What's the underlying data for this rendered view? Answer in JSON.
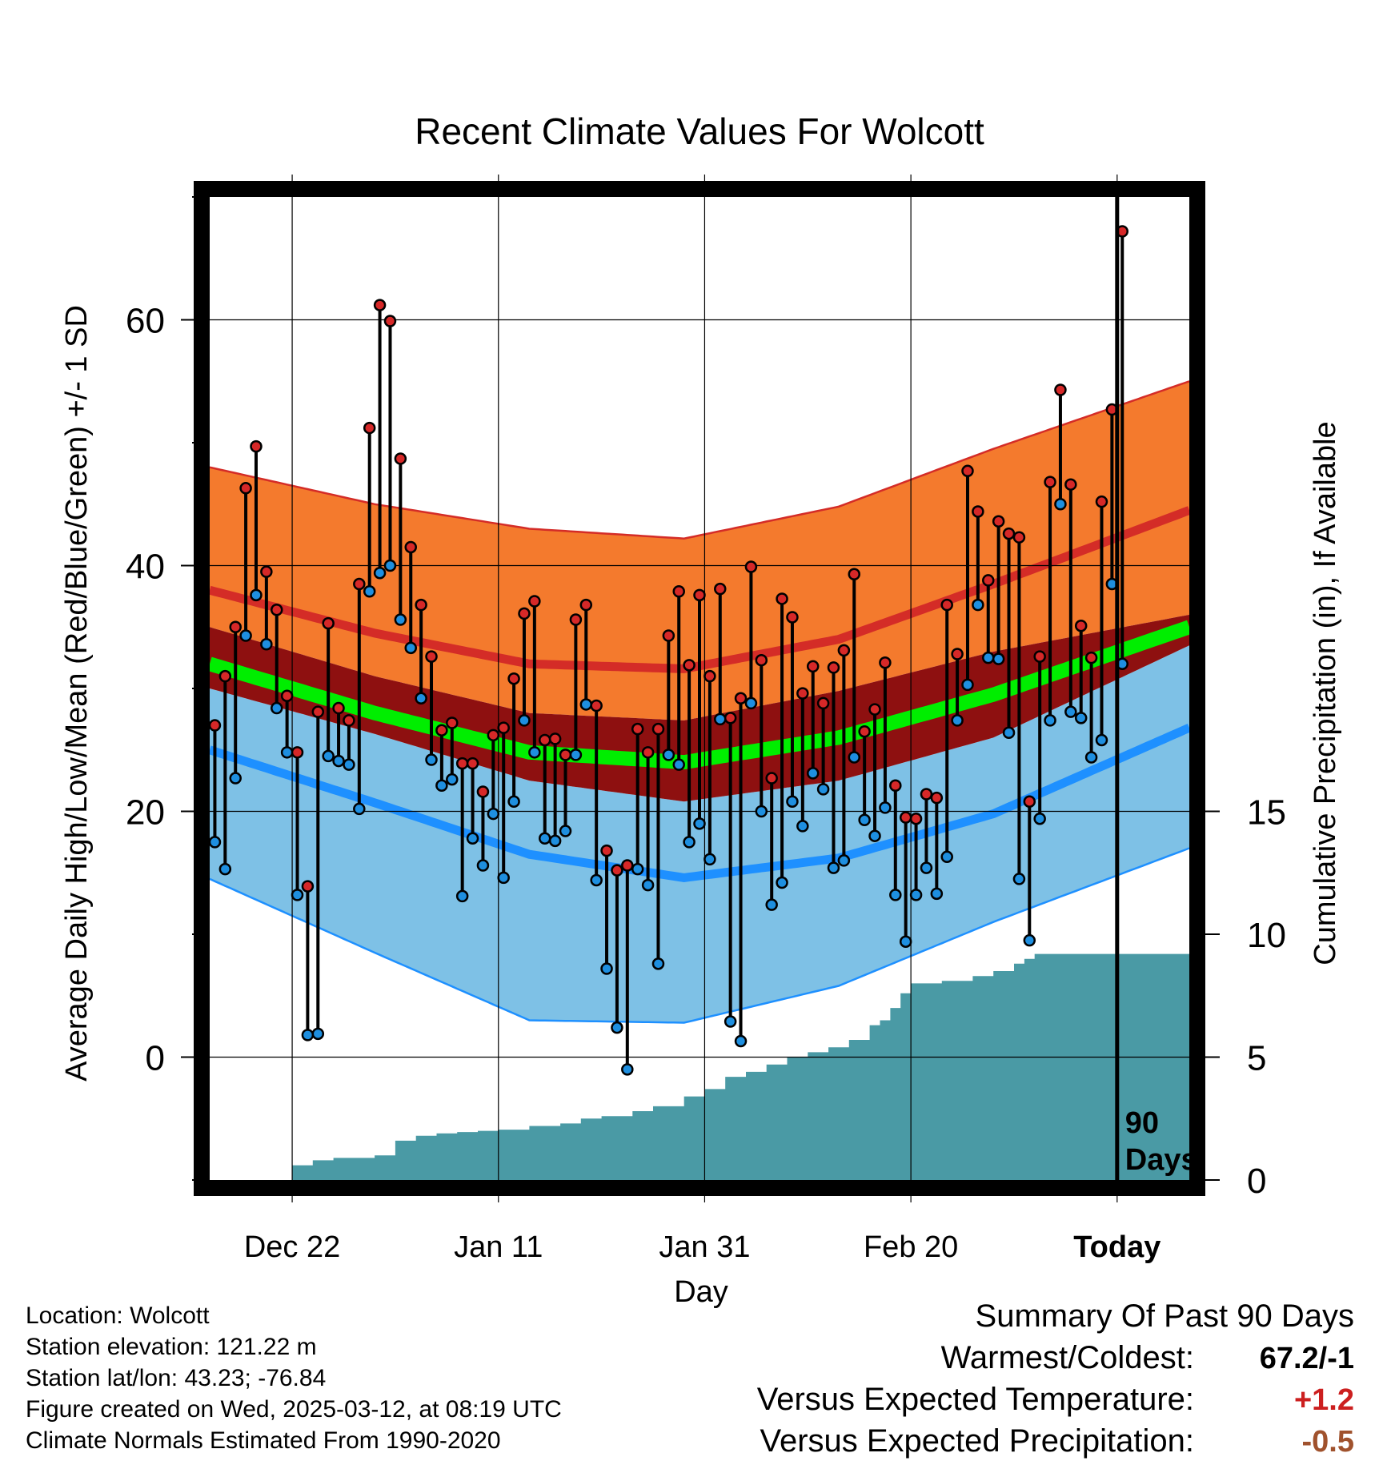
{
  "chart_data": {
    "type": "line",
    "title": "Recent Climate Values For Wolcott",
    "xlabel": "Day",
    "ylabel": "Average Daily High/Low/Mean (Red/Blue/Green) +/- 1 SD",
    "y2label": "Cumulative Precipitation (in), If Available",
    "ylim": [
      -10,
      70
    ],
    "y2lim": [
      0,
      40
    ],
    "yticks": [
      0,
      20,
      40,
      60
    ],
    "y2ticks": [
      0,
      5,
      10,
      15
    ],
    "xlim": [
      -86,
      9
    ],
    "xticks": [
      {
        "day": -78,
        "label": "Dec 22"
      },
      {
        "day": -58,
        "label": "Jan 11"
      },
      {
        "day": -38,
        "label": "Jan 31"
      },
      {
        "day": -18,
        "label": "Feb 20"
      },
      {
        "day": 2,
        "label": "Today"
      }
    ],
    "today_marker": {
      "day": 2,
      "label": [
        "90",
        "Days"
      ]
    },
    "grid": true,
    "colors": {
      "high_band": "#f47a2d",
      "high_mean": "#d42c27",
      "mean_band": "#8e1010",
      "mean_line": "#00ee00",
      "low_band": "#7ec1e6",
      "low_mean": "#1e90ff",
      "precip": "#4a9aa5",
      "high_dot": "#d62828",
      "low_dot": "#1e8fe0"
    },
    "normals": {
      "days": [
        -86,
        -70,
        -55,
        -40,
        -25,
        -10,
        9
      ],
      "high_upper": [
        48,
        45,
        43,
        42.2,
        44.8,
        49.5,
        55
      ],
      "high_mean": [
        38,
        34.5,
        32,
        31.6,
        34,
        38.5,
        44.5
      ],
      "high_lower": [
        35,
        31,
        28,
        27.4,
        29.8,
        33,
        36
      ],
      "mean_line": [
        32,
        28,
        24.8,
        24,
        26,
        29.5,
        35
      ],
      "low_upper": [
        30,
        26.3,
        22.5,
        20.8,
        22.5,
        26,
        33.5
      ],
      "low_mean": [
        25,
        20.7,
        16.5,
        14.6,
        16.2,
        19.8,
        26.8
      ],
      "low_lower": [
        14.5,
        8.5,
        3,
        2.8,
        5.8,
        11,
        17
      ]
    },
    "daily": {
      "start_day": -88,
      "highs": [
        34,
        27,
        31,
        35,
        46.3,
        49.7,
        39.5,
        36.4,
        29.4,
        24.8,
        13.9,
        28.1,
        35.3,
        28.4,
        27.4,
        38.5,
        51.2,
        61.2,
        59.9,
        48.7,
        41.5,
        36.8,
        32.6,
        26.6,
        27.2,
        23.9,
        23.9,
        21.6,
        26.2,
        26.8,
        30.8,
        36.1,
        37.1,
        25.8,
        25.9,
        24.6,
        35.6,
        36.8,
        28.6,
        16.8,
        15.2,
        15.6,
        26.7,
        24.8,
        26.7,
        34.3,
        37.9,
        31.9,
        37.6,
        31.0,
        38.1,
        27.6,
        29.2,
        39.9,
        32.3,
        22.7,
        37.3,
        35.8,
        29.6,
        31.8,
        28.8,
        31.7,
        33.1,
        39.3,
        26.5,
        28.3,
        32.1,
        22.1,
        19.5,
        19.4,
        21.4,
        21.1,
        36.8,
        32.8,
        47.7,
        44.4,
        38.8,
        43.6,
        42.6,
        42.3,
        20.8,
        32.6,
        46.8,
        54.3,
        46.6,
        35.1,
        32.5,
        45.2,
        52.7,
        67.2
      ],
      "lows": [
        19.2,
        17.5,
        15.3,
        22.7,
        34.3,
        37.6,
        33.6,
        28.4,
        24.8,
        13.2,
        1.8,
        1.9,
        24.5,
        24.1,
        23.8,
        20.2,
        37.9,
        39.4,
        40.0,
        35.6,
        33.3,
        29.2,
        24.2,
        22.1,
        22.6,
        13.1,
        17.8,
        15.6,
        19.8,
        14.6,
        20.8,
        27.4,
        24.8,
        17.8,
        17.6,
        18.4,
        24.6,
        28.7,
        14.4,
        7.2,
        2.4,
        -1.0,
        15.3,
        14.0,
        7.6,
        24.6,
        23.8,
        17.5,
        19.0,
        16.1,
        27.5,
        2.9,
        1.3,
        28.8,
        20.0,
        12.4,
        14.2,
        20.8,
        18.8,
        23.1,
        21.8,
        15.4,
        16.0,
        24.4,
        19.3,
        18.0,
        20.3,
        13.2,
        9.4,
        13.2,
        15.4,
        13.3,
        16.3,
        27.4,
        30.3,
        36.8,
        32.5,
        32.4,
        26.4,
        14.5,
        9.5,
        19.4,
        27.4,
        45.0,
        28.1,
        27.6,
        24.4,
        25.8,
        38.5,
        32.0
      ]
    },
    "precip": {
      "days": [
        -86,
        -80,
        -78,
        -76,
        -74,
        -70,
        -68,
        -66,
        -64,
        -62,
        -60,
        -58,
        -55,
        -52,
        -50,
        -48,
        -45,
        -43,
        -40,
        -38,
        -36,
        -34,
        -32,
        -30,
        -28,
        -26,
        -24,
        -22,
        -21,
        -20,
        -19,
        -18,
        -15,
        -12,
        -10,
        -8,
        -7,
        -6,
        -4,
        0,
        9
      ],
      "values": [
        0,
        0,
        0.6,
        0.8,
        0.9,
        1.0,
        1.6,
        1.8,
        1.9,
        1.95,
        2.0,
        2.05,
        2.2,
        2.3,
        2.5,
        2.6,
        2.8,
        3.0,
        3.4,
        3.7,
        4.2,
        4.4,
        4.7,
        5.0,
        5.2,
        5.4,
        5.7,
        6.3,
        6.5,
        7.0,
        7.6,
        8.0,
        8.1,
        8.3,
        8.5,
        8.8,
        9.0,
        9.2,
        9.2,
        9.2,
        9.2
      ],
      "note_shift": 0
    }
  },
  "info": {
    "location": "Location: Wolcott",
    "elevation": "Station elevation: 121.22 m",
    "latlon": "Station lat/lon: 43.23; -76.84",
    "created": "Figure created on Wed, 2025-03-12, at 08:19 UTC",
    "normals_note": "Climate Normals Estimated From 1990-2020"
  },
  "summary": {
    "title": "Summary Of Past 90 Days",
    "warmest_label": "Warmest/Coldest:",
    "warmest_value": "67.2/-1",
    "temp_label": "Versus Expected Temperature:",
    "temp_value": "+1.2",
    "temp_color": "#cc1f1f",
    "precip_label": "Versus Expected Precipitation:",
    "precip_value": "-0.5",
    "precip_color": "#a0522d"
  }
}
